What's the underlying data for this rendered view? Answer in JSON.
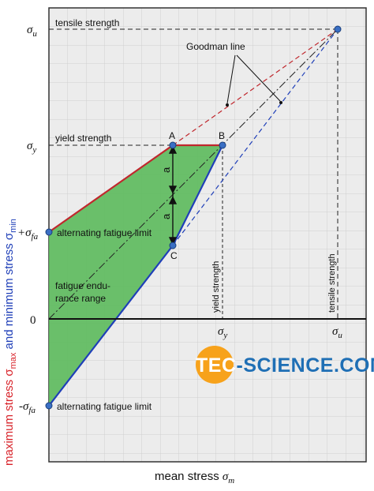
{
  "axes": {
    "x_label_prefix": "mean stress ",
    "x_label_symbol": "σ",
    "x_label_sub": "m",
    "y_label_part1": "maximum stress σ",
    "y_label_part1_sub": "max",
    "y_label_part2": " and minimum stress σ",
    "y_label_part2_sub": "min"
  },
  "ticks": {
    "sigma_u": {
      "sym": "σ",
      "sub": "u"
    },
    "sigma_y": {
      "sym": "σ",
      "sub": "y"
    },
    "plus_sigma_fa": {
      "pre": "+σ",
      "sub": "fa"
    },
    "zero": "0",
    "minus_sigma_fa": {
      "pre": "-σ",
      "sub": "fa"
    },
    "x_sigma_y": {
      "sym": "σ",
      "sub": "y"
    },
    "x_sigma_u": {
      "sym": "σ",
      "sub": "u"
    }
  },
  "labels": {
    "tensile_strength_top": "tensile strength",
    "goodman_line": "Goodman line",
    "yield_strength": "yield strength",
    "point_a": "A",
    "point_b": "B",
    "point_c": "C",
    "a_upper": "a",
    "a_lower": "a",
    "alt_fatigue_upper": "alternating fatigue limit",
    "fatigue_range_line1": "fatigue endu-",
    "fatigue_range_line2": "rance range",
    "alt_fatigue_lower": "alternating fatigue limit",
    "yield_strength_vertical": "yield strength",
    "tensile_strength_vertical": "tensile strength"
  },
  "logo": {
    "part1": "tec",
    "part2": "science",
    "part3": ".com",
    "circle_color": "#f7a21b"
  },
  "colors": {
    "max_stress_line": "#c0272d",
    "min_stress_line": "#1f3fb8",
    "fill": "#5dbb5d",
    "point": "#3a6fc4",
    "y_label_max": "#d8232a",
    "y_label_min": "#1f3fb8",
    "grid": "#c8c8c8",
    "plot_background": "#ebebeb"
  }
}
